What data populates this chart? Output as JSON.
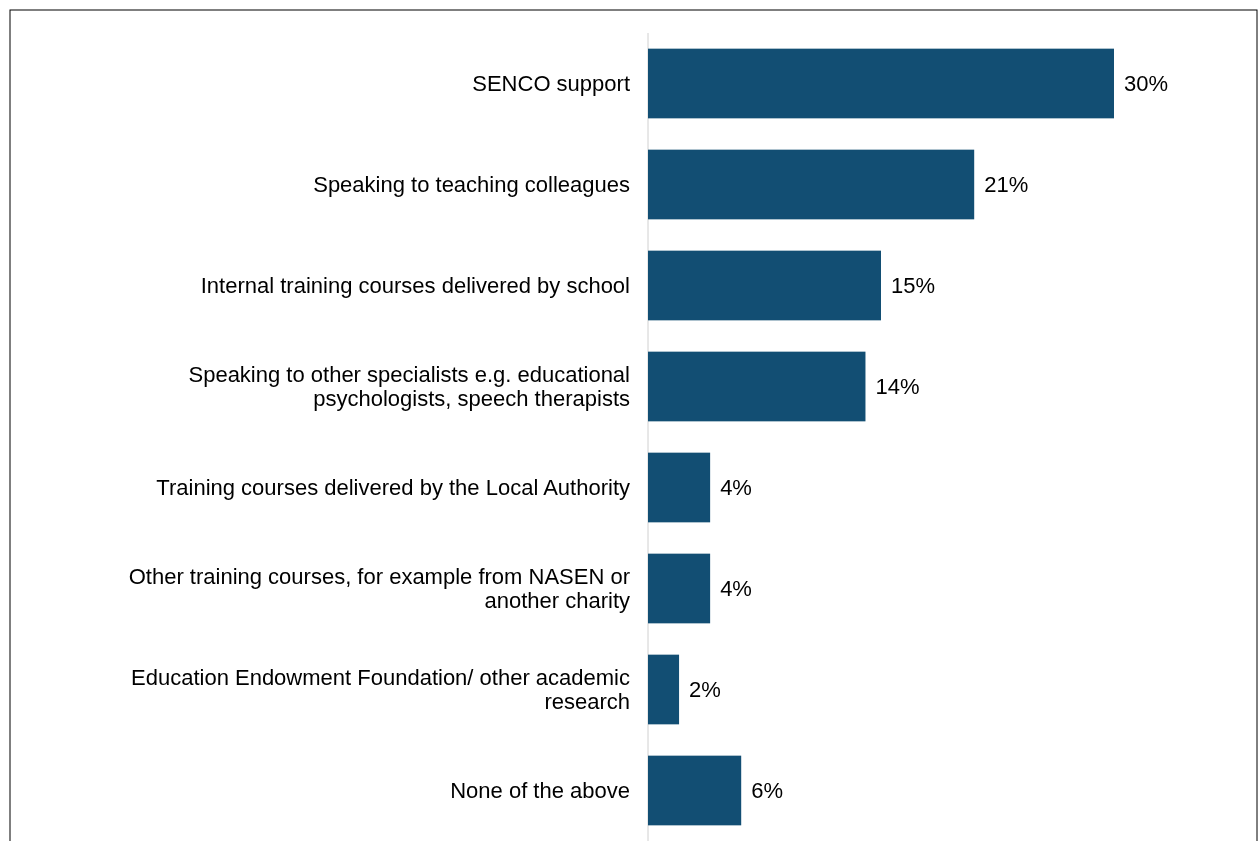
{
  "chart_data": {
    "type": "bar",
    "orientation": "horizontal",
    "categories": [
      "SENCO support",
      "Speaking to teaching colleagues",
      "Internal training courses delivered by school",
      "Speaking to other specialists e.g. educational psychologists, speech therapists",
      "Training courses delivered by the Local Authority",
      "Other training courses, for example from NASEN or another charity",
      "Education Endowment Foundation/ other academic research",
      "None of the above"
    ],
    "values": [
      30,
      21,
      15,
      14,
      4,
      4,
      2,
      6
    ],
    "value_labels": [
      "30%",
      "21%",
      "15%",
      "14%",
      "4%",
      "4%",
      "2%",
      "6%"
    ],
    "color": "#124e73"
  }
}
